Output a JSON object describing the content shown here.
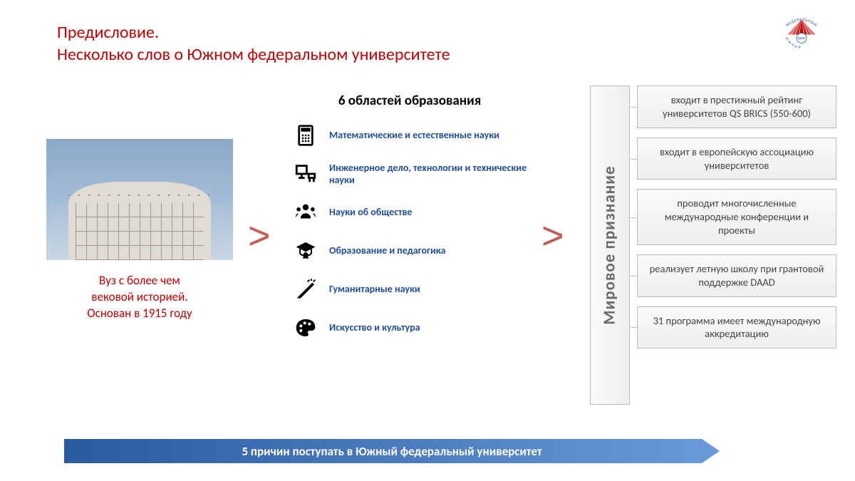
{
  "colors": {
    "title": "#c00000",
    "caption": "#c00000",
    "area_label": "#1f4e9c",
    "chevron": "#c55a5a",
    "banner_start": "#2a5a9f",
    "banner_end": "#6a9bd8",
    "logo_red": "#c00000",
    "logo_blue": "#1a4a8a"
  },
  "title": {
    "line1": "Предисловие.",
    "line2": "Несколько слов о Южном федеральном университете"
  },
  "logo": {
    "text_top": "ФЕДЕРАЛЬНЫЙ",
    "text_left": "ЮЖНЫЙ",
    "text_right": "УНИВЕРСИТЕТ",
    "abbr": "ЮФУ"
  },
  "left": {
    "caption_line1": "Вуз с более чем",
    "caption_line2": "вековой историей.",
    "caption_line3": "Основан в 1915 году"
  },
  "mid": {
    "title": "6 областей образования",
    "areas": [
      {
        "icon": "calculator",
        "label": "Математические и естественные науки"
      },
      {
        "icon": "engineering",
        "label": "Инженерное дело, технологии и технические науки"
      },
      {
        "icon": "society",
        "label": "Науки об обществе"
      },
      {
        "icon": "education",
        "label": "Образование и педагогика"
      },
      {
        "icon": "humanities",
        "label": "Гуманитарные науки"
      },
      {
        "icon": "art",
        "label": "Искусство и культура"
      }
    ]
  },
  "right": {
    "vertical": "Мировое признание",
    "items": [
      "входит в престижный рейтинг университетов QS BRICS (550-600)",
      "входит в европейскую ассоциацию университетов",
      "проводит многочисленные международные конференции и проекты",
      "реализует летную школу при грантовой поддержке DAAD",
      "31 программа имеет международную аккредитацию"
    ]
  },
  "banner": "5 причин поступать в Южный федеральный университет"
}
